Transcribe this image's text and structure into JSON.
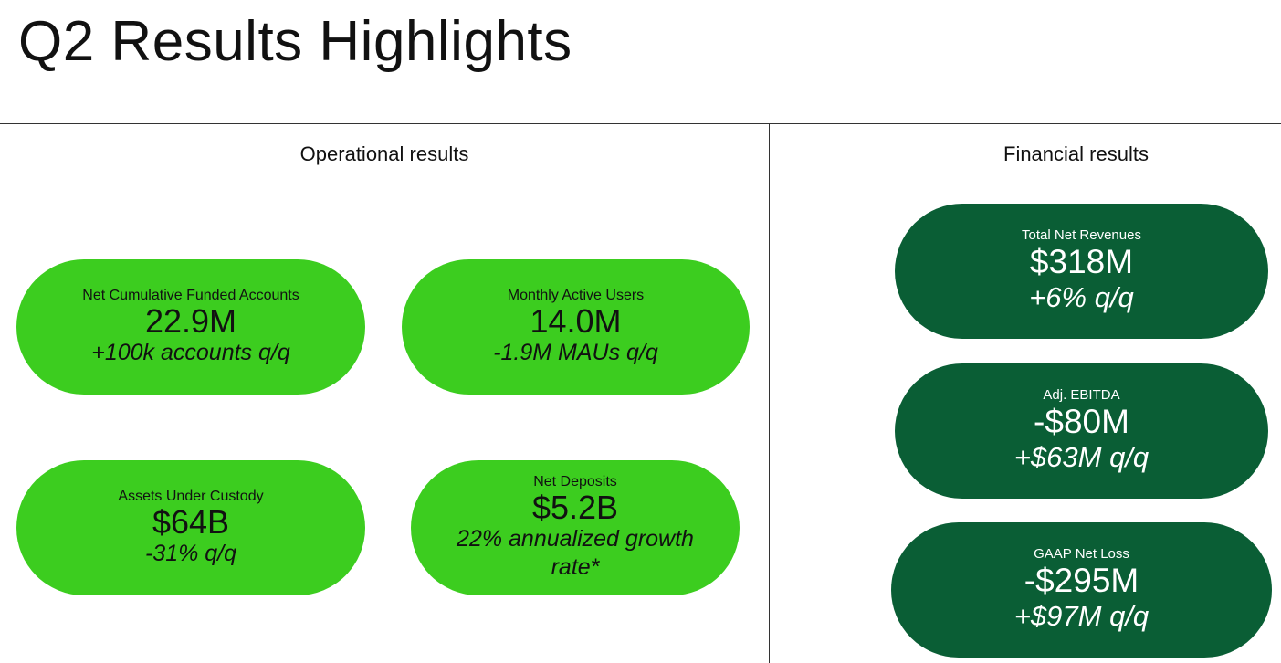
{
  "title": "Q2 Results Highlights",
  "operational": {
    "heading": "Operational results",
    "metrics": [
      {
        "label": "Net Cumulative Funded Accounts",
        "value": "22.9M",
        "change": "+100k accounts q/q"
      },
      {
        "label": "Monthly Active Users",
        "value": "14.0M",
        "change": "-1.9M MAUs q/q"
      },
      {
        "label": "Assets Under Custody",
        "value": "$64B",
        "change": "-31% q/q"
      },
      {
        "label": "Net Deposits",
        "value": "$5.2B",
        "change": "22% annualized growth rate*"
      }
    ]
  },
  "financial": {
    "heading": "Financial results",
    "metrics": [
      {
        "label": "Total Net Revenues",
        "value": "$318M",
        "change": "+6% q/q"
      },
      {
        "label": "Adj. EBITDA",
        "value": "-$80M",
        "change": "+$63M q/q"
      },
      {
        "label": "GAAP Net Loss",
        "value": "-$295M",
        "change": "+$97M q/q"
      }
    ]
  },
  "colors": {
    "operational_pill": "#3ccd1f",
    "financial_pill": "#0a5e35"
  }
}
